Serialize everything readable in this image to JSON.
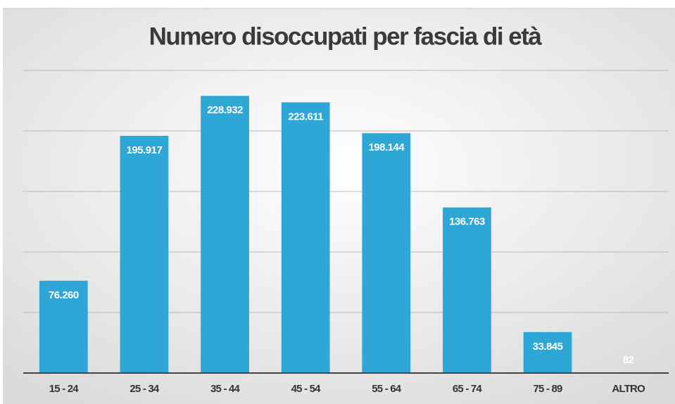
{
  "chart_data": {
    "type": "bar",
    "title": "Numero disoccupati per fascia di età",
    "categories": [
      "15 - 24",
      "25 - 34",
      "35 - 44",
      "45 - 54",
      "55 - 64",
      "65 - 74",
      "75 - 89",
      "ALTRO"
    ],
    "values": [
      76260,
      195917,
      228932,
      223611,
      198144,
      136763,
      33845,
      82
    ],
    "value_labels": [
      "76.260",
      "195.917",
      "228.932",
      "223.611",
      "198.144",
      "136.763",
      "33.845",
      "82"
    ],
    "color": "#2ea7d7",
    "ylim": [
      0,
      300000
    ],
    "yticks": [
      0,
      50000,
      100000,
      150000,
      200000,
      250000
    ],
    "grid": true
  }
}
